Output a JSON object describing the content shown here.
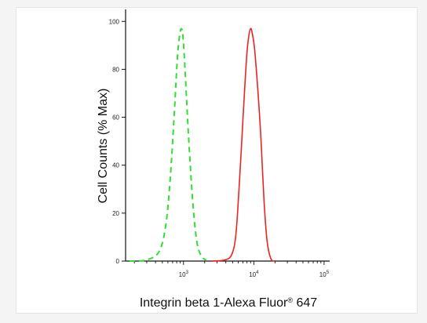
{
  "chart_data": {
    "type": "line",
    "xlabel": "Integrin beta 1-Alexa Fluor",
    "xlabel_suffix": " 647",
    "xlabel_reg": "®",
    "ylabel": "Cell Counts (% Max)",
    "x_scale": "log",
    "xlim": [
      150,
      120000
    ],
    "ylim": [
      0,
      105
    ],
    "y_ticks": [
      "0",
      "20",
      "40",
      "60",
      "80",
      "100"
    ],
    "y_tick_values": [
      0,
      20,
      40,
      60,
      80,
      100
    ],
    "x_ticks": [
      {
        "value": 1000,
        "base": "10",
        "exp": "3"
      },
      {
        "value": 10000,
        "base": "10",
        "exp": "4"
      },
      {
        "value": 100000,
        "base": "10",
        "exp": "5"
      }
    ],
    "grid": false,
    "legend": "none",
    "series": [
      {
        "color": "#33dd33",
        "style": "dashed",
        "points": [
          [
            170,
            0
          ],
          [
            300,
            0.5
          ],
          [
            450,
            4
          ],
          [
            560,
            15
          ],
          [
            650,
            35
          ],
          [
            740,
            62
          ],
          [
            820,
            85
          ],
          [
            880,
            94
          ],
          [
            930,
            97
          ],
          [
            980,
            94
          ],
          [
            1050,
            80
          ],
          [
            1180,
            52
          ],
          [
            1350,
            25
          ],
          [
            1550,
            8
          ],
          [
            1800,
            2
          ],
          [
            2100,
            0.5
          ]
        ]
      },
      {
        "color": "#ee2222",
        "style": "solid",
        "points": [
          [
            2500,
            0
          ],
          [
            3900,
            0.5
          ],
          [
            4900,
            3
          ],
          [
            5600,
            12
          ],
          [
            6300,
            35
          ],
          [
            7100,
            62
          ],
          [
            7900,
            85
          ],
          [
            8500,
            94
          ],
          [
            9000,
            97
          ],
          [
            9500,
            95
          ],
          [
            10300,
            88
          ],
          [
            11500,
            70
          ],
          [
            12700,
            50
          ],
          [
            14000,
            25
          ],
          [
            15500,
            8
          ],
          [
            17500,
            1
          ],
          [
            20000,
            0
          ]
        ]
      }
    ]
  }
}
